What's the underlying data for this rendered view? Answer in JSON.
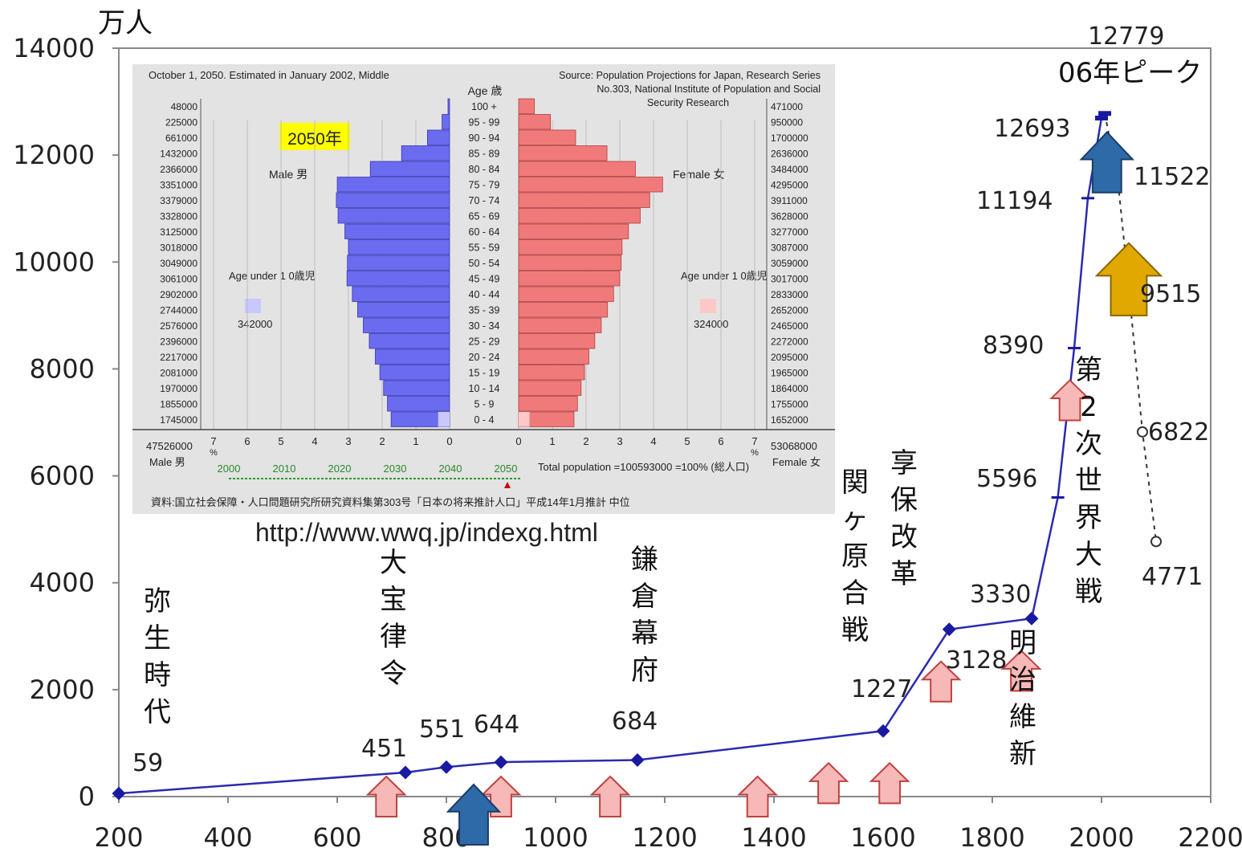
{
  "chart_data": [
    {
      "type": "line",
      "y_unit": "万人",
      "xlim": [
        200,
        2200
      ],
      "ylim": [
        0,
        14000
      ],
      "x_ticks": [
        "200",
        "400",
        "600",
        "800",
        "1000",
        "1200",
        "1400",
        "1600",
        "1800",
        "2000",
        "2200"
      ],
      "y_ticks": [
        "0",
        "2000",
        "4000",
        "6000",
        "8000",
        "10000",
        "12000",
        "14000"
      ],
      "series": [
        {
          "style": "solid",
          "points": [
            {
              "x": 200,
              "y": 59,
              "label": "59"
            },
            {
              "x": 725,
              "y": 451,
              "label": "451"
            },
            {
              "x": 800,
              "y": 551,
              "label": "551"
            },
            {
              "x": 900,
              "y": 644,
              "label": "644"
            },
            {
              "x": 1150,
              "y": 684,
              "label": "684"
            },
            {
              "x": 1600,
              "y": 1227,
              "label": "1227"
            },
            {
              "x": 1721,
              "y": 3128,
              "label": "3128"
            },
            {
              "x": 1872,
              "y": 3330,
              "label": "3330"
            },
            {
              "x": 1920,
              "y": 5596,
              "label": "5596"
            },
            {
              "x": 1950,
              "y": 8390,
              "label": "8390"
            },
            {
              "x": 1975,
              "y": 11194,
              "label": "11194"
            },
            {
              "x": 2000,
              "y": 12693,
              "label": "12693"
            },
            {
              "x": 2006,
              "y": 12779,
              "label": "12779"
            }
          ]
        },
        {
          "style": "dashed",
          "points": [
            {
              "x": 2006,
              "y": 12779
            },
            {
              "x": 2030,
              "y": 11522,
              "label": "11522"
            },
            {
              "x": 2050,
              "y": 9515,
              "label": "9515"
            },
            {
              "x": 2075,
              "y": 6822,
              "label": "6822"
            },
            {
              "x": 2100,
              "y": 4771,
              "label": "4771"
            }
          ]
        }
      ],
      "annotations": [
        {
          "x": 200,
          "text": "弥生時代"
        },
        {
          "x": 701,
          "text": "大宝律令"
        },
        {
          "x": 1192,
          "text": "鎌倉幕府"
        },
        {
          "x": 1600,
          "text": "関ヶ原合戦"
        },
        {
          "x": 1716,
          "text": "享保改革"
        },
        {
          "x": 1868,
          "text": "明治維新"
        },
        {
          "x": 1945,
          "text": "第2次世界大戦"
        },
        {
          "x": 2006,
          "text": "06年ピーク"
        }
      ]
    },
    {
      "type": "bar",
      "subtype": "population-pyramid",
      "title_left": "October 1, 2050.  Estimated in January 2002, Middle",
      "title_right": "Source: Population Projections for Japan, Research Series No.303, National Institute of Population and Social Security Research",
      "year_badge": "2050年",
      "male_label": "Male 男",
      "female_label": "Female 女",
      "age_header": "Age 歳",
      "age_groups": [
        "100 +",
        "95 - 99",
        "90 - 94",
        "85 - 89",
        "80 - 84",
        "75 - 79",
        "70 - 74",
        "65 - 69",
        "60 - 64",
        "55 - 59",
        "50 - 54",
        "45 - 49",
        "40 - 44",
        "35 - 39",
        "30 - 34",
        "25 - 29",
        "20 - 24",
        "15 - 19",
        "10 - 14",
        "5 - 9",
        "0 - 4"
      ],
      "male": [
        48000,
        225000,
        661000,
        1432000,
        2366000,
        3351000,
        3379000,
        3328000,
        3125000,
        3018000,
        3049000,
        3061000,
        2902000,
        2744000,
        2576000,
        2396000,
        2217000,
        2081000,
        1970000,
        1855000,
        1745000
      ],
      "female": [
        471000,
        950000,
        1700000,
        2636000,
        3484000,
        4295000,
        3911000,
        3628000,
        3277000,
        3087000,
        3059000,
        3017000,
        2833000,
        2652000,
        2465000,
        2272000,
        2095000,
        1965000,
        1864000,
        1755000,
        1652000
      ],
      "axis_ticks": [
        "7",
        "6",
        "5",
        "4",
        "3",
        "2",
        "1",
        "0"
      ],
      "axis_unit": "%",
      "xlim_percent": [
        0,
        7
      ],
      "under1_label": "Age under 1 0歳児",
      "male_under1": "342000",
      "female_under1": "324000",
      "male_total": "47526000",
      "female_total": "53068000",
      "total_text": "Total population =100593000 =100% (総人口)",
      "years": [
        "2000",
        "2010",
        "2020",
        "2030",
        "2040",
        "2050"
      ],
      "source_jp": "資料:国立社会保障・人口問題研究所研究資料集第303号「日本の将来推計人口」平成14年1月推計  中位",
      "url": "http://www.wwq.jp/indexg.html"
    }
  ]
}
